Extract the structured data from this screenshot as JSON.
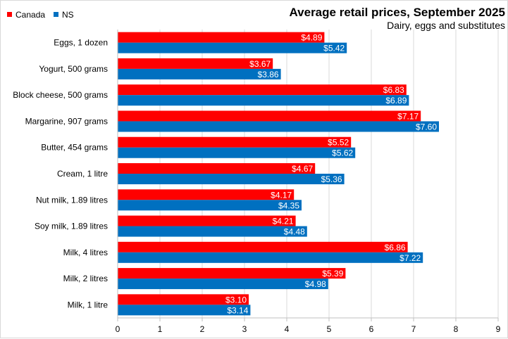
{
  "chart_data": {
    "type": "bar",
    "orientation": "horizontal",
    "title": "Average retail prices, September 2025",
    "subtitle": "Dairy, eggs and substitutes",
    "xlabel": "",
    "ylabel": "",
    "xlim": [
      0,
      9
    ],
    "ticks": [
      "0",
      "1",
      "2",
      "3",
      "4",
      "5",
      "6",
      "7",
      "8",
      "9"
    ],
    "grid": true,
    "legend_position": "top-left",
    "categories": [
      "Eggs, 1 dozen",
      "Yogurt, 500 grams",
      "Block cheese, 500 grams",
      "Margarine, 907 grams",
      "Butter, 454 grams",
      "Cream, 1 litre",
      "Nut milk, 1.89 litres",
      "Soy milk, 1.89 litres",
      "Milk, 4 litres",
      "Milk, 2 litres",
      "Milk, 1 litre"
    ],
    "series": [
      {
        "name": "Canada",
        "color": "#ff0000",
        "values": [
          4.89,
          3.67,
          6.83,
          7.17,
          5.52,
          4.67,
          4.17,
          4.21,
          6.86,
          5.39,
          3.1
        ],
        "labels": [
          "$4.89",
          "$3.67",
          "$6.83",
          "$7.17",
          "$5.52",
          "$4.67",
          "$4.17",
          "$4.21",
          "$6.86",
          "$5.39",
          "$3.10"
        ]
      },
      {
        "name": "NS",
        "color": "#0070c0",
        "values": [
          5.42,
          3.86,
          6.89,
          7.6,
          5.62,
          5.36,
          4.35,
          4.48,
          7.22,
          4.98,
          3.14
        ],
        "labels": [
          "$5.42",
          "$3.86",
          "$6.89",
          "$7.60",
          "$5.62",
          "$5.36",
          "$4.35",
          "$4.48",
          "$7.22",
          "$4.98",
          "$3.14"
        ]
      }
    ]
  }
}
